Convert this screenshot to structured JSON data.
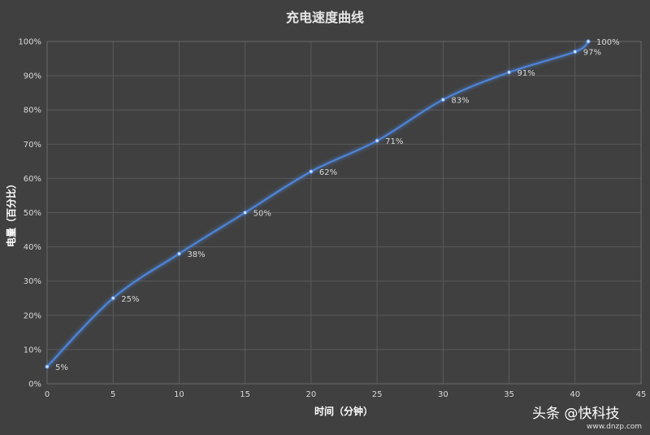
{
  "chart_data": {
    "type": "line",
    "title": "充电速度曲线",
    "xlabel": "时间（分钟）",
    "ylabel": "电量（百分比）",
    "xlim": [
      0,
      45
    ],
    "ylim": [
      0,
      100
    ],
    "x_ticks": [
      "0",
      "5",
      "10",
      "15",
      "20",
      "25",
      "30",
      "35",
      "40",
      "45"
    ],
    "y_ticks": [
      "0%",
      "10%",
      "20%",
      "30%",
      "40%",
      "50%",
      "60%",
      "70%",
      "80%",
      "90%",
      "100%"
    ],
    "grid": true,
    "line_color": "#4e84d8",
    "points": [
      {
        "x": 0,
        "y": 5,
        "label": "5%"
      },
      {
        "x": 5,
        "y": 25,
        "label": "25%"
      },
      {
        "x": 10,
        "y": 38,
        "label": "38%"
      },
      {
        "x": 15,
        "y": 50,
        "label": "50%"
      },
      {
        "x": 20,
        "y": 62,
        "label": "62%"
      },
      {
        "x": 25,
        "y": 71,
        "label": "71%"
      },
      {
        "x": 30,
        "y": 83,
        "label": "83%"
      },
      {
        "x": 35,
        "y": 91,
        "label": "91%"
      },
      {
        "x": 40,
        "y": 97,
        "label": "97%"
      },
      {
        "x": 41,
        "y": 100,
        "label": "100%"
      }
    ]
  },
  "watermark": {
    "main": "头条 @快科技",
    "sub": "www.dnzp.com"
  }
}
